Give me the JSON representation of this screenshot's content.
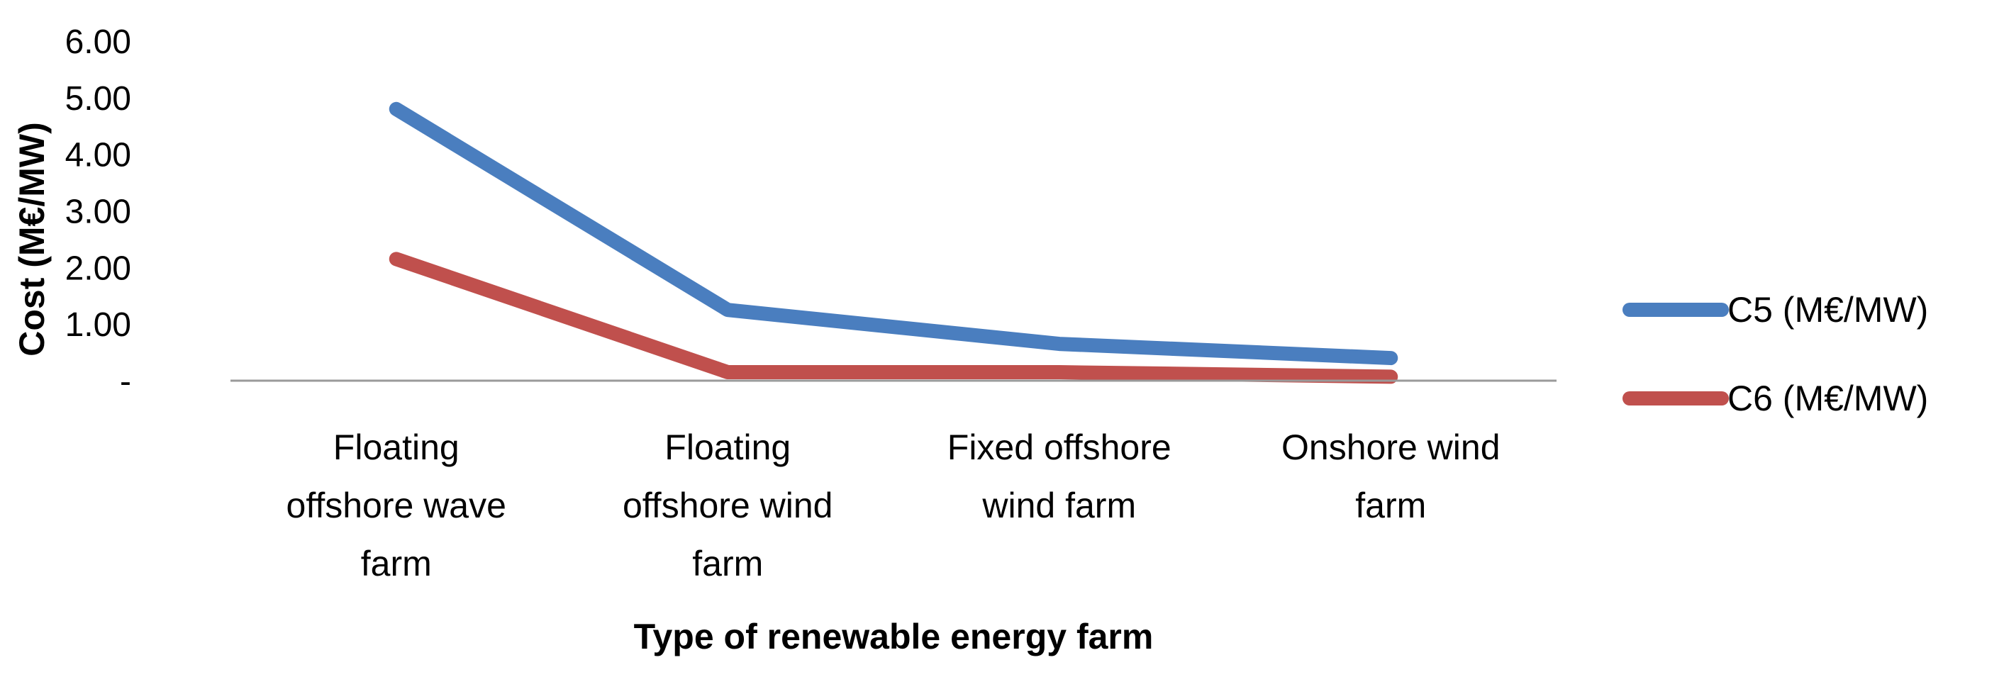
{
  "chart_data": {
    "type": "line",
    "title": "",
    "xlabel": "Type of renewable energy farm",
    "ylabel": "Cost (M€/MW)",
    "ylim": [
      0,
      6
    ],
    "yticks": [
      {
        "value": 0,
        "label": "-"
      },
      {
        "value": 1,
        "label": "1.00"
      },
      {
        "value": 2,
        "label": "2.00"
      },
      {
        "value": 3,
        "label": "3.00"
      },
      {
        "value": 4,
        "label": "4.00"
      },
      {
        "value": 5,
        "label": "5.00"
      },
      {
        "value": 6,
        "label": "6.00"
      }
    ],
    "categories": [
      [
        "Floating",
        "offshore wave",
        "farm"
      ],
      [
        "Floating",
        "offshore wind",
        "farm"
      ],
      [
        "Fixed offshore",
        "wind farm"
      ],
      [
        "Onshore wind",
        "farm"
      ]
    ],
    "series": [
      {
        "name": "C5 (M€/MW)",
        "color": "#4a7ebf",
        "values": [
          4.8,
          1.25,
          0.65,
          0.4
        ]
      },
      {
        "name": "C6 (M€/MW)",
        "color": "#c0504d",
        "values": [
          2.15,
          0.15,
          0.15,
          0.07
        ]
      }
    ],
    "grid": false,
    "legend_position": "right"
  }
}
